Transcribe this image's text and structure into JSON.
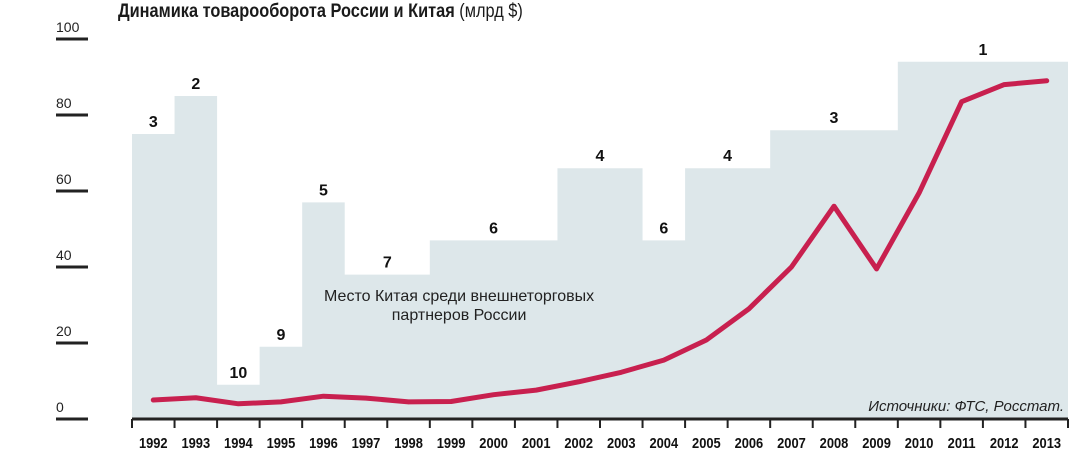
{
  "chart_data": {
    "type": "line",
    "title": "Динамика товарооборота России и Китая",
    "unit": "(млрд $)",
    "ylim": [
      0,
      100
    ],
    "yticks": [
      0,
      20,
      40,
      60,
      80,
      100
    ],
    "categories": [
      "1992",
      "1993",
      "1994",
      "1995",
      "1996",
      "1997",
      "1998",
      "1999",
      "2000",
      "2001",
      "2002",
      "2003",
      "2004",
      "2005",
      "2006",
      "2007",
      "2008",
      "2009",
      "2010",
      "2011",
      "2012",
      "2013"
    ],
    "series": [
      {
        "values": [
          5.0,
          5.6,
          4.0,
          4.5,
          6.0,
          5.5,
          4.5,
          4.6,
          6.4,
          7.6,
          9.8,
          12.3,
          15.5,
          20.8,
          29.0,
          40.0,
          56.0,
          39.5,
          59.5,
          83.5,
          88.0,
          89.0
        ]
      }
    ],
    "ranking": {
      "note_lines": [
        "Место Китая среди внешнеторговых",
        "партнеров России"
      ],
      "values": [
        75,
        85,
        9,
        19,
        57,
        38,
        38,
        47,
        47,
        47,
        66,
        66,
        47,
        66,
        66,
        76,
        76,
        76,
        94,
        94,
        94,
        94
      ],
      "groups": [
        {
          "label": "3",
          "years": [
            "1992"
          ]
        },
        {
          "label": "2",
          "years": [
            "1993"
          ]
        },
        {
          "label": "10",
          "years": [
            "1994"
          ]
        },
        {
          "label": "9",
          "years": [
            "1995"
          ]
        },
        {
          "label": "5",
          "years": [
            "1996"
          ]
        },
        {
          "label": "7",
          "years": [
            "1997",
            "1998"
          ]
        },
        {
          "label": "6",
          "years": [
            "1999",
            "2000",
            "2001"
          ]
        },
        {
          "label": "4",
          "years": [
            "2002",
            "2003"
          ]
        },
        {
          "label": "6",
          "years": [
            "2004"
          ]
        },
        {
          "label": "4",
          "years": [
            "2005",
            "2006"
          ]
        },
        {
          "label": "3",
          "years": [
            "2007",
            "2008",
            "2009"
          ]
        },
        {
          "label": "1",
          "years": [
            "2010",
            "2011",
            "2012",
            "2013"
          ]
        }
      ]
    },
    "source": "Источники: ФТС, Росстат.",
    "colors": {
      "line": "#c8204f",
      "area": "#dde7ea",
      "axis": "#222222"
    }
  }
}
